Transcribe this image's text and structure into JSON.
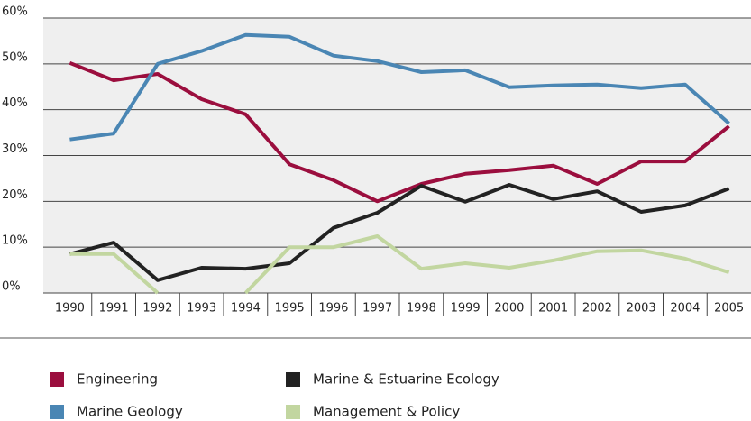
{
  "chart_data": {
    "type": "line",
    "categories": [
      "1990",
      "1991",
      "1992",
      "1993",
      "1994",
      "1995",
      "1996",
      "1997",
      "1998",
      "1999",
      "2000",
      "2001",
      "2002",
      "2003",
      "2004",
      "2005"
    ],
    "series": [
      {
        "name": "Engineering",
        "color": "#9b0e3e",
        "values": [
          50.2,
          46.4,
          47.8,
          42.3,
          39.0,
          28.1,
          24.6,
          20.0,
          23.8,
          26.0,
          26.8,
          27.8,
          23.8,
          28.7,
          28.7,
          36.4
        ]
      },
      {
        "name": "Marine Geology",
        "color": "#4a86b4",
        "values": [
          33.5,
          34.8,
          50.0,
          52.8,
          56.3,
          55.9,
          51.8,
          50.6,
          48.2,
          48.6,
          44.9,
          45.3,
          45.5,
          44.7,
          45.5,
          37.0
        ]
      },
      {
        "name": "Marine & Estuarine Ecology",
        "color": "#222222",
        "values": [
          8.5,
          11.0,
          2.8,
          5.5,
          5.3,
          6.5,
          14.2,
          17.5,
          23.4,
          19.9,
          23.6,
          20.5,
          22.2,
          17.7,
          19.1,
          22.8
        ]
      },
      {
        "name": "Management & Policy",
        "color": "#c2d6a0",
        "values": [
          8.5,
          8.5,
          0,
          null,
          0,
          10.0,
          10.0,
          12.4,
          5.3,
          6.5,
          5.5,
          7.1,
          9.1,
          9.3,
          7.5,
          4.5
        ]
      }
    ],
    "ylim": [
      0,
      60
    ],
    "yticks": [
      {
        "value": 0,
        "label": "0%"
      },
      {
        "value": 10,
        "label": "10%"
      },
      {
        "value": 20,
        "label": "20%"
      },
      {
        "value": 30,
        "label": "30%"
      },
      {
        "value": 40,
        "label": "40%"
      },
      {
        "value": 50,
        "label": "50%"
      },
      {
        "value": 60,
        "label": "60%"
      }
    ],
    "grid": true
  }
}
